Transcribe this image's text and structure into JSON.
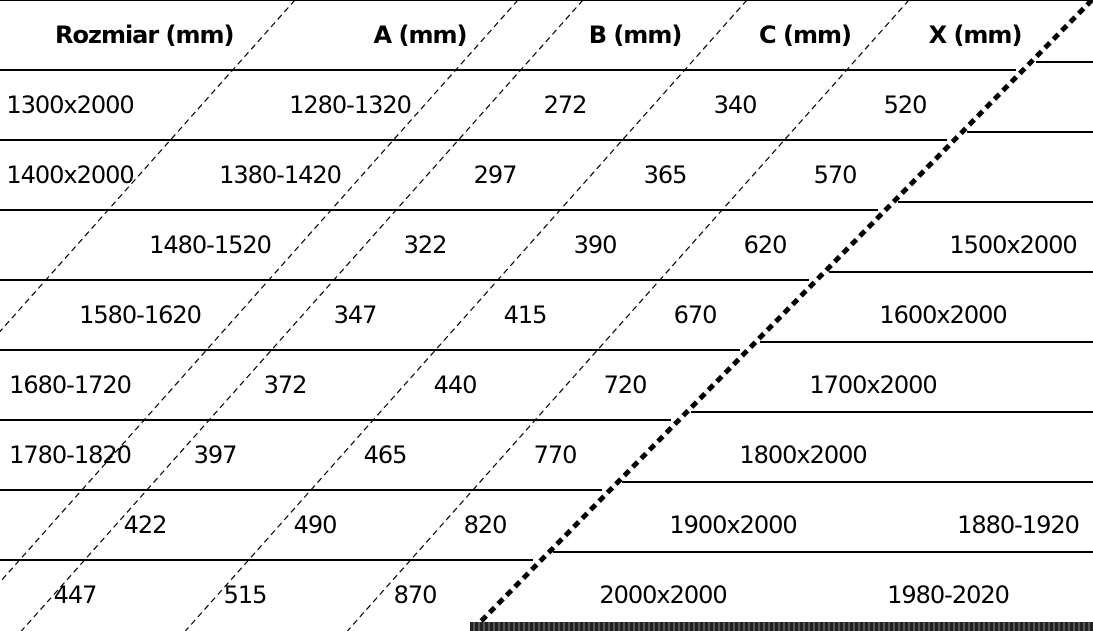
{
  "table": {
    "headers": [
      "Rozmiar (mm)",
      "A (mm)",
      "B (mm)",
      "C (mm)",
      "X (mm)"
    ],
    "rows": [
      [
        "1300x2000",
        "1280-1320",
        "272",
        "340",
        "520"
      ],
      [
        "1400x2000",
        "1380-1420",
        "297",
        "365",
        "570"
      ],
      [
        "1500x2000",
        "1480-1520",
        "322",
        "390",
        "620"
      ],
      [
        "1600x2000",
        "1580-1620",
        "347",
        "415",
        "670"
      ],
      [
        "1700x2000",
        "1680-1720",
        "372",
        "440",
        "720"
      ],
      [
        "1800x2000",
        "1780-1820",
        "397",
        "465",
        "770"
      ],
      [
        "1900x2000",
        "1880-1920",
        "422",
        "490",
        "820"
      ],
      [
        "2000x2000",
        "1980-2020",
        "447",
        "515",
        "870"
      ]
    ]
  }
}
